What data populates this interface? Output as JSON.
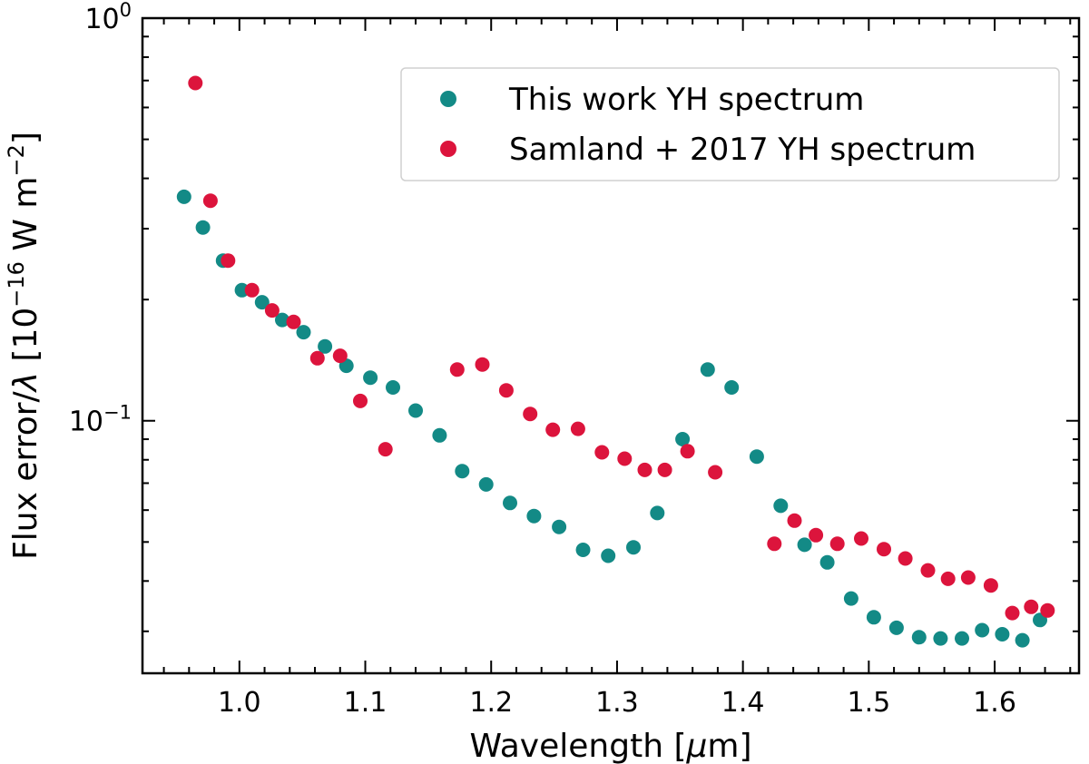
{
  "chart_data": {
    "type": "scatter",
    "xscale": "linear",
    "yscale": "log",
    "xlim": [
      0.923,
      1.667
    ],
    "ylim": [
      0.0236,
      1.0
    ],
    "xticks": [
      1.0,
      1.1,
      1.2,
      1.3,
      1.4,
      1.5,
      1.6
    ],
    "xtick_labels": [
      "1.0",
      "1.1",
      "1.2",
      "1.3",
      "1.4",
      "1.5",
      "1.6"
    ],
    "yticks": [
      {
        "value": 1.0,
        "base": "10",
        "exp": "0"
      },
      {
        "value": 0.1,
        "base": "10",
        "exp": "−1"
      }
    ],
    "xlabel": {
      "pre": "Wavelength [",
      "italic": "μ",
      "post": "m]"
    },
    "ylabel": {
      "pre": "Flux error/",
      "italic": "λ",
      "mid": " [10",
      "sup1": "−16",
      "mid2": " W m",
      "sup2": "−2",
      "post": "]"
    },
    "legend_position": "top-right",
    "series": [
      {
        "name": "This work YH spectrum",
        "color": "#138a86",
        "points": [
          [
            0.956,
            0.36
          ],
          [
            0.971,
            0.302
          ],
          [
            0.987,
            0.25
          ],
          [
            1.002,
            0.211
          ],
          [
            1.018,
            0.197
          ],
          [
            1.034,
            0.178
          ],
          [
            1.051,
            0.166
          ],
          [
            1.068,
            0.153
          ],
          [
            1.085,
            0.137
          ],
          [
            1.104,
            0.128
          ],
          [
            1.122,
            0.121
          ],
          [
            1.14,
            0.106
          ],
          [
            1.159,
            0.092
          ],
          [
            1.177,
            0.075
          ],
          [
            1.196,
            0.0695
          ],
          [
            1.215,
            0.0625
          ],
          [
            1.234,
            0.058
          ],
          [
            1.254,
            0.0545
          ],
          [
            1.273,
            0.0478
          ],
          [
            1.293,
            0.0462
          ],
          [
            1.313,
            0.0485
          ],
          [
            1.332,
            0.059
          ],
          [
            1.352,
            0.09
          ],
          [
            1.372,
            0.134
          ],
          [
            1.391,
            0.121
          ],
          [
            1.411,
            0.0815
          ],
          [
            1.43,
            0.0615
          ],
          [
            1.449,
            0.0492
          ],
          [
            1.467,
            0.0445
          ],
          [
            1.486,
            0.0362
          ],
          [
            1.504,
            0.0325
          ],
          [
            1.522,
            0.0306
          ],
          [
            1.54,
            0.029
          ],
          [
            1.557,
            0.0288
          ],
          [
            1.574,
            0.0288
          ],
          [
            1.59,
            0.0302
          ],
          [
            1.606,
            0.0295
          ],
          [
            1.622,
            0.0285
          ],
          [
            1.636,
            0.032
          ]
        ]
      },
      {
        "name": "Samland + 2017 YH spectrum",
        "color": "#dc143c",
        "points": [
          [
            0.965,
            0.69
          ],
          [
            0.977,
            0.352
          ],
          [
            0.991,
            0.25
          ],
          [
            1.01,
            0.211
          ],
          [
            1.026,
            0.188
          ],
          [
            1.043,
            0.176
          ],
          [
            1.062,
            0.143
          ],
          [
            1.08,
            0.145
          ],
          [
            1.096,
            0.112
          ],
          [
            1.116,
            0.085
          ],
          [
            1.173,
            0.134
          ],
          [
            1.193,
            0.138
          ],
          [
            1.212,
            0.119
          ],
          [
            1.231,
            0.104
          ],
          [
            1.249,
            0.095
          ],
          [
            1.269,
            0.0955
          ],
          [
            1.288,
            0.0835
          ],
          [
            1.306,
            0.0805
          ],
          [
            1.322,
            0.0755
          ],
          [
            1.338,
            0.0755
          ],
          [
            1.356,
            0.084
          ],
          [
            1.378,
            0.0745
          ],
          [
            1.425,
            0.0495
          ],
          [
            1.441,
            0.0565
          ],
          [
            1.458,
            0.052
          ],
          [
            1.475,
            0.0495
          ],
          [
            1.494,
            0.051
          ],
          [
            1.512,
            0.048
          ],
          [
            1.529,
            0.0455
          ],
          [
            1.547,
            0.0425
          ],
          [
            1.563,
            0.0405
          ],
          [
            1.579,
            0.0408
          ],
          [
            1.597,
            0.039
          ],
          [
            1.614,
            0.0333
          ],
          [
            1.629,
            0.0345
          ],
          [
            1.642,
            0.0338
          ]
        ]
      }
    ]
  }
}
